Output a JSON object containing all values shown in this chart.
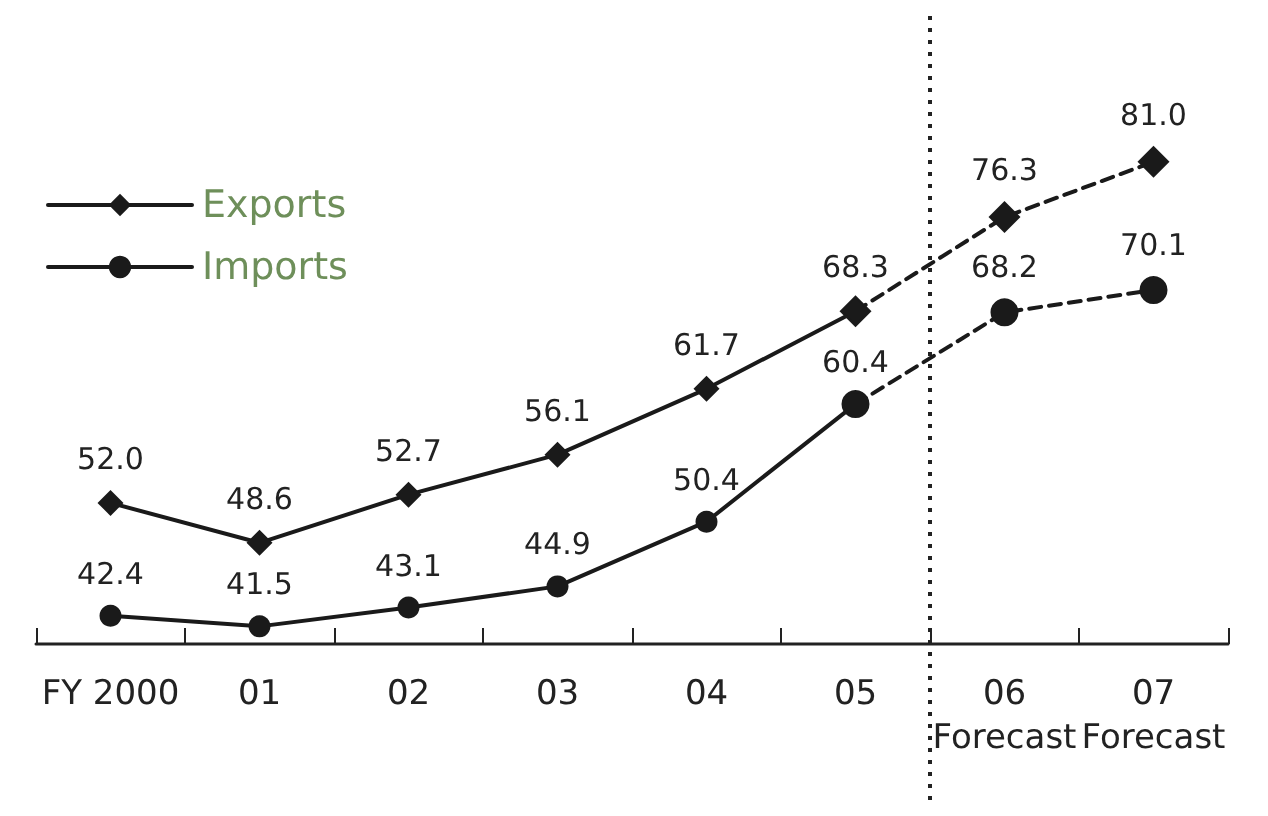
{
  "chart_data": {
    "type": "line",
    "categories": [
      "FY 2000",
      "01",
      "02",
      "03",
      "04",
      "05",
      "06\nForecast",
      "07\nForecast"
    ],
    "series": [
      {
        "name": "Exports",
        "color": "#1a1a1a",
        "marker": "diamond",
        "line_style": "solid",
        "values": [
          52.0,
          48.6,
          52.7,
          56.1,
          61.7,
          68.3,
          null,
          null
        ],
        "value_labels": [
          "52.0",
          "48.6",
          "52.7",
          "56.1",
          "61.7",
          "68.3",
          null,
          null
        ]
      },
      {
        "name": "Imports",
        "color": "#1a1a1a",
        "marker": "circle",
        "line_style": "solid",
        "values": [
          42.4,
          41.5,
          43.1,
          44.9,
          50.4,
          60.4,
          null,
          null
        ],
        "value_labels": [
          "42.4",
          "41.5",
          "43.1",
          "44.9",
          "50.4",
          "60.4",
          null,
          null
        ]
      },
      {
        "color": "#1a1a1a",
        "marker": "diamond",
        "line_style": "dashed",
        "values": [
          null,
          null,
          null,
          null,
          null,
          68.3,
          76.3,
          81.0
        ],
        "value_labels": [
          null,
          null,
          null,
          null,
          null,
          null,
          "76.3",
          "81.0"
        ]
      },
      {
        "color": "#1a1a1a",
        "marker": "circle",
        "line_style": "dashed",
        "values": [
          null,
          null,
          null,
          null,
          null,
          60.4,
          68.2,
          70.1
        ],
        "value_labels": [
          null,
          null,
          null,
          null,
          null,
          null,
          "68.2",
          "70.1"
        ]
      }
    ],
    "legend": "top left",
    "grid": false
  }
}
